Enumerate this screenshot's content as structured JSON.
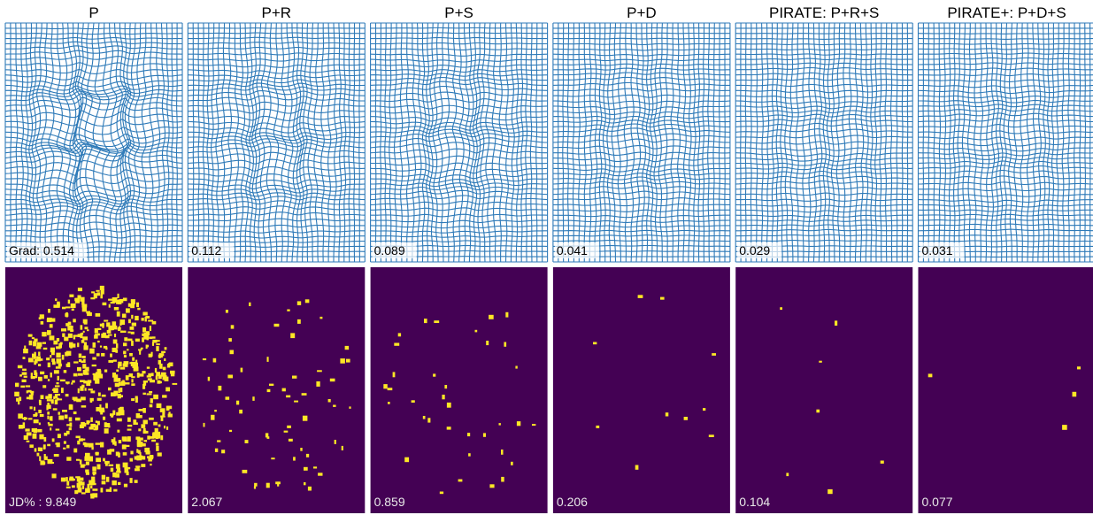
{
  "columns": [
    {
      "title": "P",
      "grad_label": "Grad: 0.514",
      "jd_label": "JD% : 9.849"
    },
    {
      "title": "P+R",
      "grad_label": "0.112",
      "jd_label": "2.067"
    },
    {
      "title": "P+S",
      "grad_label": "0.089",
      "jd_label": "0.859"
    },
    {
      "title": "P+D",
      "grad_label": "0.041",
      "jd_label": "0.206"
    },
    {
      "title": "PIRATE: P+R+S",
      "grad_label": "0.029",
      "jd_label": "0.104"
    },
    {
      "title": "PIRATE+: P+D+S",
      "grad_label": "0.031",
      "jd_label": "0.077"
    }
  ]
}
